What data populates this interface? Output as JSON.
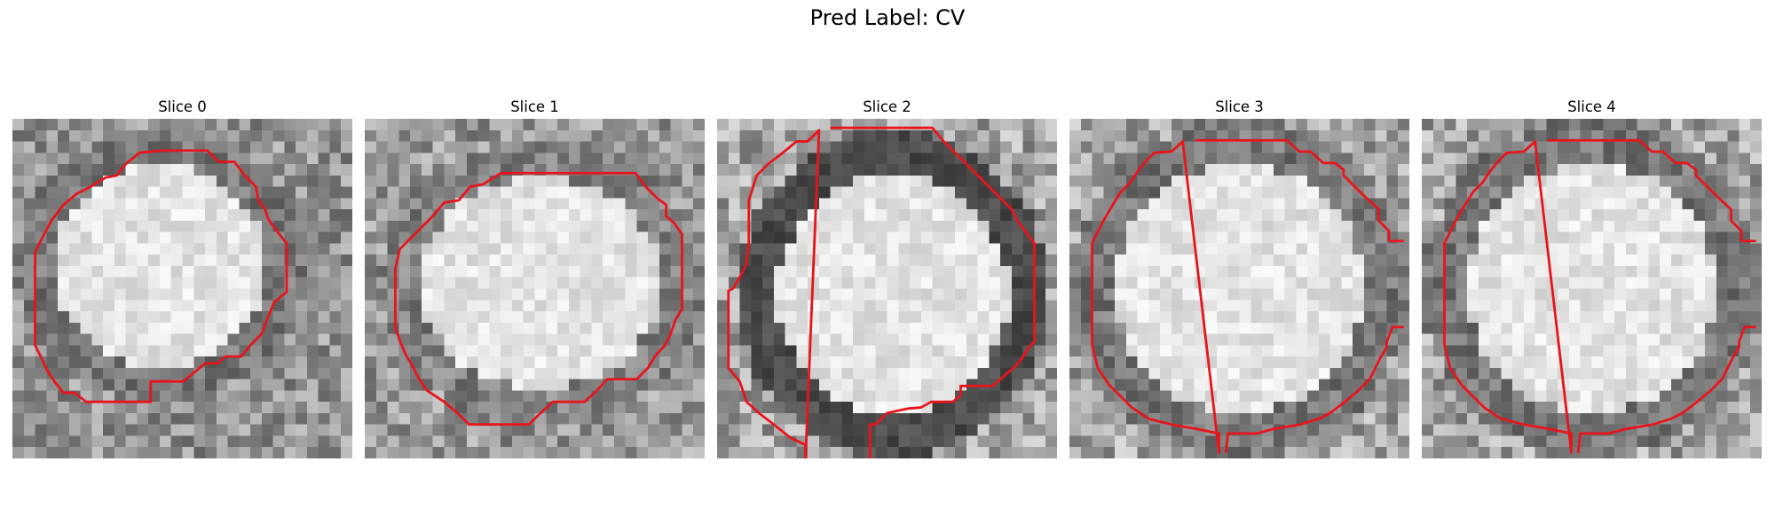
{
  "figure": {
    "title": "Pred Label: CV"
  },
  "panels": [
    {
      "title": "Slice 0",
      "seed": 11,
      "style": "shift"
    },
    {
      "title": "Slice 1",
      "seed": 23,
      "style": "wide"
    },
    {
      "title": "Slice 2",
      "seed": 37,
      "style": "ring"
    },
    {
      "title": "Slice 3",
      "seed": 41,
      "style": "bright"
    },
    {
      "title": "Slice 4",
      "seed": 53,
      "style": "bright"
    }
  ],
  "colors": {
    "contour": "#e8141b",
    "background": "#ffffff"
  }
}
